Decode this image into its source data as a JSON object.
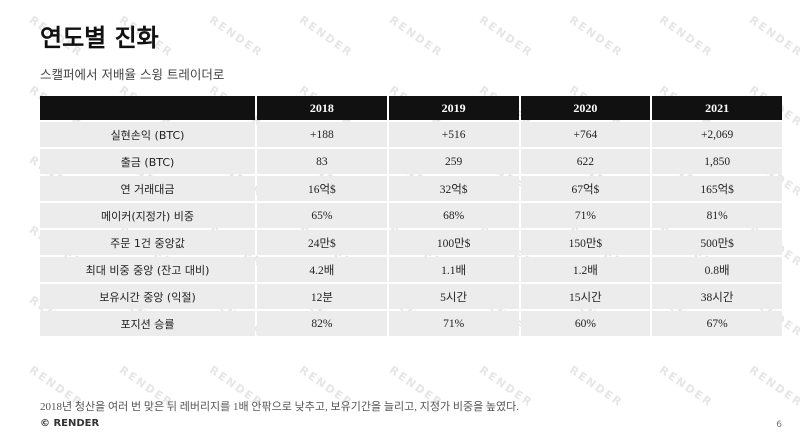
{
  "header": {
    "title": "연도별 진화",
    "subtitle": "스캘퍼에서 저배율 스윙 트레이더로"
  },
  "table": {
    "columns": [
      "2018",
      "2019",
      "2020",
      "2021"
    ],
    "rows": [
      [
        "실현손익 (BTC)",
        "+188",
        "+516",
        "+764",
        "+2,069"
      ],
      [
        "출금 (BTC)",
        "83",
        "259",
        "622",
        "1,850"
      ],
      [
        "연 거래대금",
        "16억$",
        "32억$",
        "67억$",
        "165억$"
      ],
      [
        "메이커(지정가) 비중",
        "65%",
        "68%",
        "71%",
        "81%"
      ],
      [
        "주문 1건 중앙값",
        "24만$",
        "100만$",
        "150만$",
        "500만$"
      ],
      [
        "최대 비중 중앙 (잔고 대비)",
        "4.2배",
        "1.1배",
        "1.2배",
        "0.8배"
      ],
      [
        "보유시간 중앙 (익절)",
        "12분",
        "5시간",
        "15시간",
        "38시간"
      ],
      [
        "포지션 승률",
        "82%",
        "71%",
        "60%",
        "67%"
      ]
    ]
  },
  "footnote": "2018년 청산을 여러 번 맞은 뒤 레버리지를 1배 안팎으로 낮추고, 보유기간을 늘리고, 지정가 비중을 높였다.",
  "footer": {
    "brand": "© RENDER",
    "page": "6"
  },
  "watermark": "RENDER"
}
